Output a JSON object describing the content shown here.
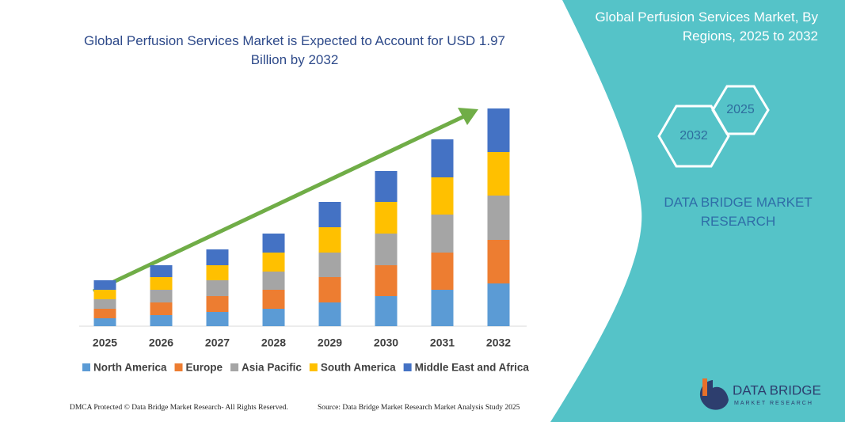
{
  "chart_data": {
    "type": "stacked_bar",
    "title": "Global Perfusion Services Market is Expected to Account for USD 1.97 Billion by 2032",
    "categories": [
      "2025",
      "2026",
      "2027",
      "2028",
      "2029",
      "2030",
      "2031",
      "2032"
    ],
    "series": [
      {
        "name": "North America",
        "color": "#5b9bd5",
        "values": [
          10,
          14,
          18,
          22,
          30,
          38,
          46,
          54
        ]
      },
      {
        "name": "Europe",
        "color": "#ed7d31",
        "values": [
          12,
          16,
          20,
          24,
          32,
          39,
          47,
          55
        ]
      },
      {
        "name": "Asia Pacific",
        "color": "#a5a5a5",
        "values": [
          12,
          16,
          20,
          23,
          31,
          40,
          48,
          56
        ]
      },
      {
        "name": "South America",
        "color": "#ffc000",
        "values": [
          12,
          16,
          19,
          24,
          32,
          40,
          47,
          55
        ]
      },
      {
        "name": "Middle East and Africa",
        "color": "#4472c4",
        "values": [
          12,
          15,
          20,
          24,
          32,
          39,
          48,
          55
        ]
      }
    ]
  },
  "panel": {
    "title": "Global Perfusion Services Market, By Regions, 2025 to 2032",
    "hexagons": [
      "2025",
      "2032"
    ],
    "brand": "DATA BRIDGE MARKET RESEARCH"
  },
  "logo": {
    "name": "DATA BRIDGE",
    "tagline": "MARKET RESEARCH"
  },
  "footer": {
    "dmca": "DMCA Protected © Data Bridge Market Research-  All Rights Reserved.",
    "source": "Source: Data Bridge Market Research  Market Analysis Study 2025"
  }
}
